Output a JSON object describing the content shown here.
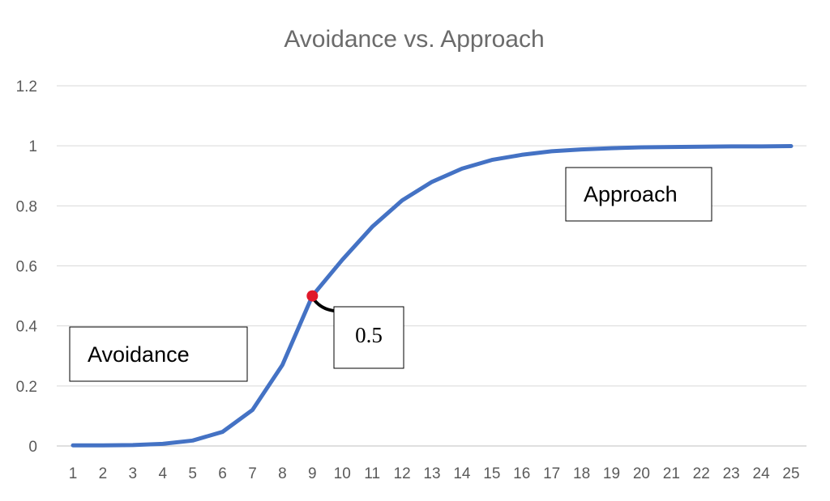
{
  "chart_data": {
    "type": "line",
    "title": "Avoidance vs. Approach",
    "xlabel": "",
    "ylabel": "",
    "x": [
      1,
      2,
      3,
      4,
      5,
      6,
      7,
      8,
      9,
      10,
      11,
      12,
      13,
      14,
      15,
      16,
      17,
      18,
      19,
      20,
      21,
      22,
      23,
      24,
      25
    ],
    "series": [
      {
        "values": [
          0.002,
          0.002,
          0.003,
          0.007,
          0.018,
          0.047,
          0.12,
          0.27,
          0.5,
          0.62,
          0.73,
          0.818,
          0.88,
          0.924,
          0.953,
          0.97,
          0.982,
          0.988,
          0.992,
          0.995,
          0.996,
          0.997,
          0.998,
          0.998,
          0.999
        ],
        "color": "#4472C4"
      }
    ],
    "ylim": [
      0,
      1.2
    ],
    "yticks": [
      "0",
      "0.2",
      "0.4",
      "0.6",
      "0.8",
      "1",
      "1.2"
    ],
    "xticks": [
      "1",
      "2",
      "3",
      "4",
      "5",
      "6",
      "7",
      "8",
      "9",
      "10",
      "11",
      "12",
      "13",
      "14",
      "15",
      "16",
      "17",
      "18",
      "19",
      "20",
      "21",
      "22",
      "23",
      "24",
      "25"
    ],
    "grid": true,
    "legend": "none",
    "annotations": {
      "avoidance_label": "Avoidance",
      "approach_label": "Approach",
      "midpoint_label": "0.5",
      "midpoint": {
        "x": 9,
        "y": 0.5,
        "color": "#e0192b"
      }
    },
    "colors": {
      "gridline": "#d9d9d9",
      "axis": "#bfbfbf",
      "text": "#595959"
    }
  }
}
